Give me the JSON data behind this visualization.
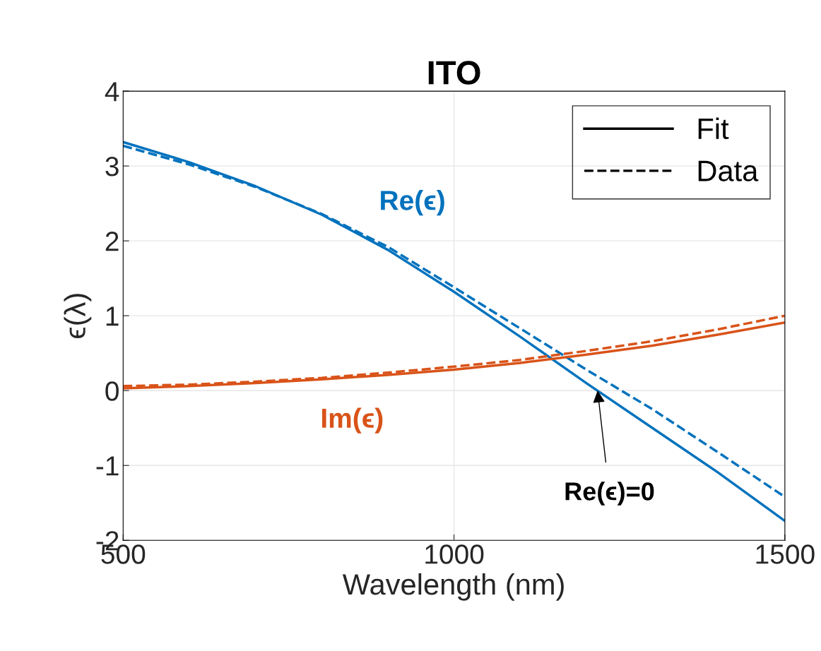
{
  "chart_data": {
    "type": "line",
    "title": "ITO",
    "xlabel": "Wavelength (nm)",
    "ylabel": "ϵ(λ)",
    "x": [
      500,
      600,
      700,
      800,
      900,
      1000,
      1100,
      1200,
      1300,
      1400,
      1500
    ],
    "series": [
      {
        "name": "Re(ϵ)",
        "color": "#0072bd",
        "line_style": "solid",
        "values": [
          3.32,
          3.05,
          2.73,
          2.35,
          1.88,
          1.32,
          0.72,
          0.1,
          -0.5,
          -1.1,
          -1.74
        ]
      },
      {
        "color": "#0072bd",
        "line_style": "dashed",
        "values": [
          3.27,
          3.02,
          2.72,
          2.36,
          1.92,
          1.38,
          0.83,
          0.28,
          -0.25,
          -0.83,
          -1.42
        ]
      },
      {
        "name": "Im(ϵ)",
        "color": "#d95319",
        "line_style": "solid",
        "values": [
          0.03,
          0.06,
          0.1,
          0.15,
          0.21,
          0.28,
          0.37,
          0.48,
          0.6,
          0.75,
          0.91
        ]
      },
      {
        "color": "#d95319",
        "line_style": "dashed",
        "values": [
          0.06,
          0.08,
          0.12,
          0.17,
          0.24,
          0.32,
          0.41,
          0.53,
          0.66,
          0.82,
          1.0
        ]
      }
    ],
    "annotations": [
      "Fit",
      "Data",
      {
        "text": "Re(ϵ)=0",
        "x": 1217,
        "y": 0
      }
    ],
    "xlim": [
      500,
      1500
    ],
    "xticks": [
      500,
      1000,
      1500
    ],
    "ylim": [
      -2,
      4
    ],
    "yticks": [
      -2,
      -1,
      0,
      1,
      2,
      3,
      4
    ],
    "grid": true,
    "marker": "none"
  }
}
